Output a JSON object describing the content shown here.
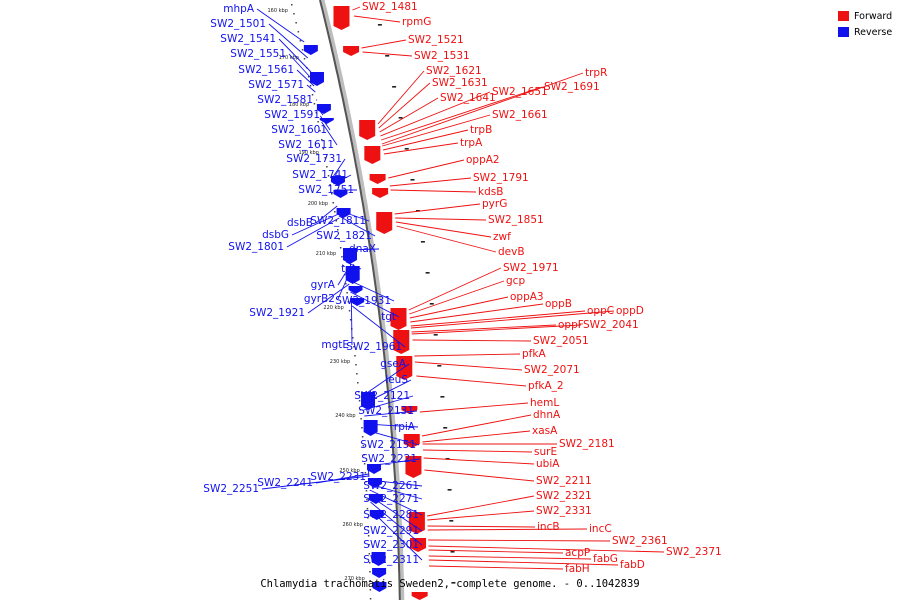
{
  "legend": {
    "forward": {
      "label": "Forward",
      "color": "#ee1111"
    },
    "reverse": {
      "label": "Reverse",
      "color": "#1111ee"
    }
  },
  "caption": "Chlamydia trachomatis Sweden2, complete genome. - 0..1042839",
  "ticks": [
    "160 kbp",
    "170 kbp",
    "180 kbp",
    "190 kbp",
    "200 kbp",
    "210 kbp",
    "220 kbp",
    "230 kbp",
    "240 kbp",
    "250 kbp",
    "260 kbp",
    "270 kbp"
  ],
  "forward_labels": [
    "SW2_1481",
    "rpmG",
    "SW2_1521",
    "SW2_1531",
    "SW2_1621",
    "SW2_1631",
    "SW2_1641",
    "SW2_1651",
    "SW2_1691",
    "trpR",
    "SW2_1661",
    "trpB",
    "trpA",
    "oppA2",
    "SW2_1791",
    "kdsB",
    "pyrG",
    "SW2_1851",
    "zwf",
    "devB",
    "SW2_1971",
    "gcp",
    "oppA3",
    "oppB",
    "oppC",
    "oppD",
    "oppF",
    "SW2_2041",
    "SW2_2051",
    "pfkA",
    "SW2_2071",
    "pfkA_2",
    "hemL",
    "dhnA",
    "xasA",
    "SW2_2181",
    "surE",
    "ubiA",
    "SW2_2211",
    "SW2_2321",
    "SW2_2331",
    "incB",
    "incC",
    "SW2_2361",
    "SW2_2371",
    "acpP",
    "fabG",
    "fabD",
    "fabH"
  ],
  "reverse_labels": [
    "mhpA",
    "SW2_1501",
    "SW2_1541",
    "SW2_1551",
    "SW2_1561",
    "SW2_1571",
    "SW2_1581",
    "SW2_1591",
    "SW2_1601",
    "SW2_1611",
    "SW2_1731",
    "SW2_1741",
    "SW2_1751",
    "dsbB",
    "SW2_1811",
    "dsbG",
    "SW2_1821",
    "SW2_1801",
    "dnaX",
    "tdk",
    "gyrA",
    "gyrB2",
    "SW2_1931",
    "SW2_1921",
    "tgt",
    "mgtE",
    "SW2_1961",
    "gseA",
    "leuS",
    "SW2_2121",
    "SW2_2131",
    "rpiA",
    "SW2_2151",
    "SW2_2221",
    "SW2_2231",
    "SW2_2241",
    "SW2_2251",
    "SW2_2261",
    "SW2_2271",
    "SW2_2281",
    "SW2_2291",
    "SW2_2301",
    "SW2_2311"
  ]
}
